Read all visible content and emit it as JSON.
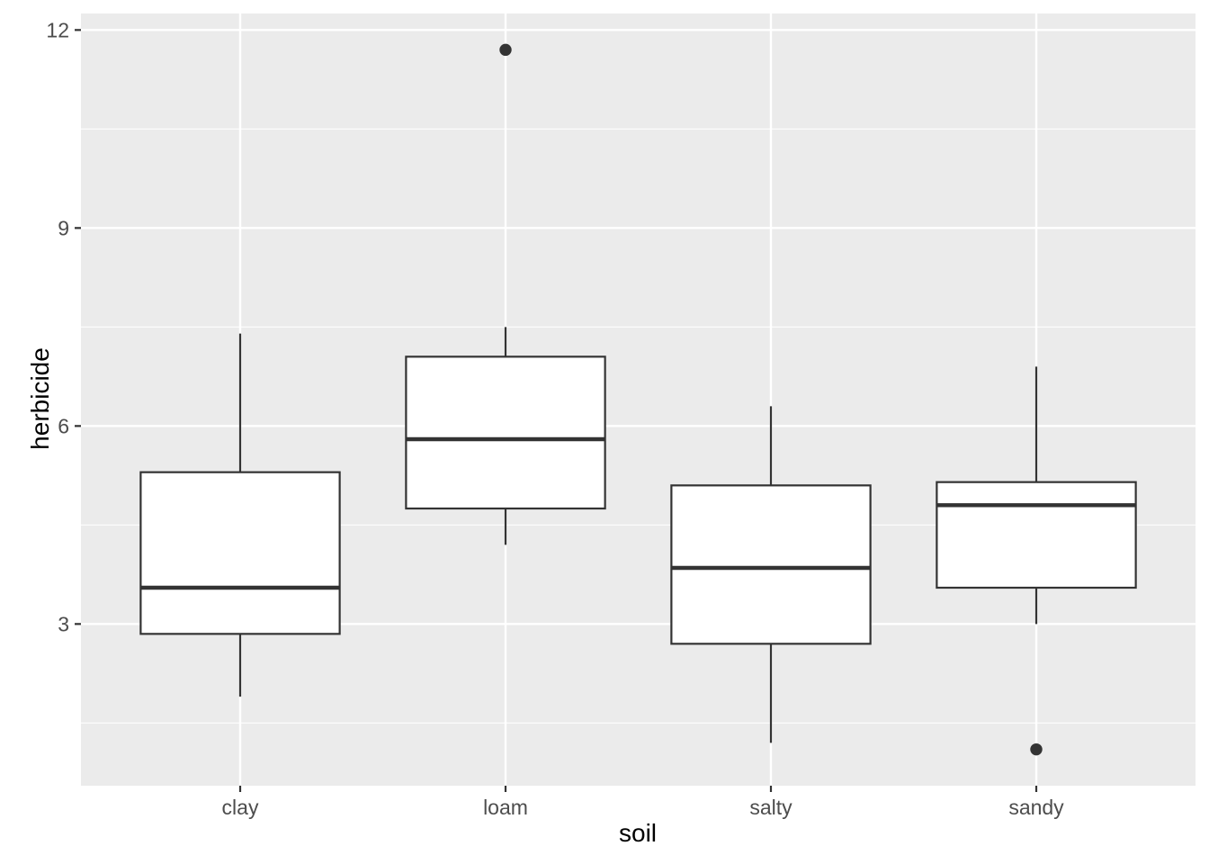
{
  "chart_data": {
    "type": "boxplot",
    "xlabel": "soil",
    "ylabel": "herbicide",
    "categories": [
      "clay",
      "loam",
      "salty",
      "sandy"
    ],
    "series": [
      {
        "category": "clay",
        "whisker_low": 1.9,
        "q1": 2.85,
        "median": 3.55,
        "q3": 5.3,
        "whisker_high": 7.4,
        "outliers": []
      },
      {
        "category": "loam",
        "whisker_low": 4.2,
        "q1": 4.75,
        "median": 5.8,
        "q3": 7.05,
        "whisker_high": 7.5,
        "outliers": [
          11.7
        ]
      },
      {
        "category": "salty",
        "whisker_low": 1.2,
        "q1": 2.7,
        "median": 3.85,
        "q3": 5.1,
        "whisker_high": 6.3,
        "outliers": []
      },
      {
        "category": "sandy",
        "whisker_low": 3.0,
        "q1": 3.55,
        "median": 4.8,
        "q3": 5.15,
        "whisker_high": 6.9,
        "outliers": [
          1.1
        ]
      }
    ],
    "y_ticks": [
      "3",
      "6",
      "9",
      "12"
    ],
    "y_tick_values": [
      3,
      6,
      9,
      12
    ],
    "y_minor_tick_values": [
      1.5,
      4.5,
      7.5,
      10.5
    ],
    "ylim": [
      0.55,
      12.25
    ],
    "grid": "horizontal major+minor, vertical major at categories",
    "legend": "none",
    "colors": {
      "panel_background": "#EBEBEB",
      "grid": "#FFFFFF",
      "box_border": "#333333",
      "box_fill": "#FFFFFF",
      "median": "#333333",
      "outlier": "#333333",
      "tick_mark": "#333333",
      "axis_text": "#4D4D4D",
      "axis_title": "#000000"
    }
  }
}
